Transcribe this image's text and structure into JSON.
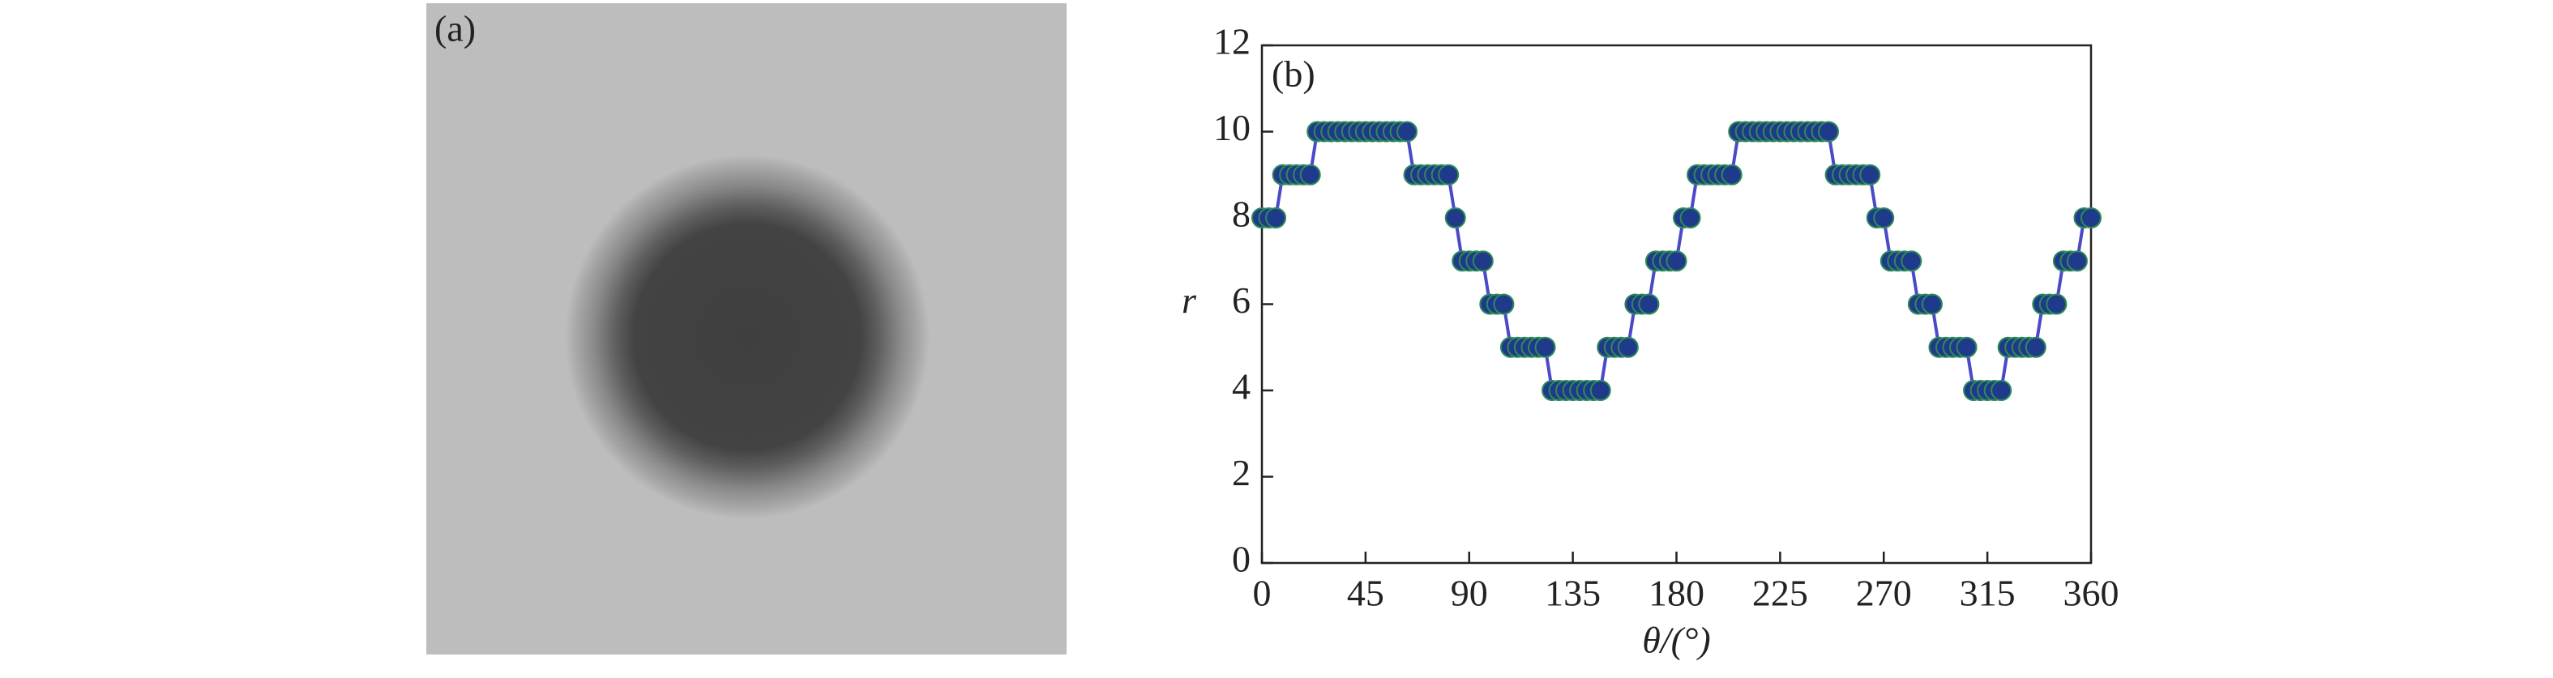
{
  "panel_a": {
    "label": "(a)"
  },
  "chart_data": {
    "type": "line",
    "label": "(b)",
    "xlabel": "θ/(°)",
    "ylabel": "r",
    "color": "#4a4ac8",
    "marker_color": "#1f3a8a",
    "marker_edge": "#2e8b57",
    "x": [
      0,
      3,
      6,
      9,
      12,
      15,
      18,
      21,
      24,
      27,
      30,
      33,
      36,
      39,
      42,
      45,
      48,
      51,
      54,
      57,
      60,
      63,
      66,
      69,
      72,
      75,
      78,
      81,
      84,
      87,
      90,
      93,
      96,
      99,
      102,
      105,
      108,
      111,
      114,
      117,
      120,
      123,
      126,
      129,
      132,
      135,
      138,
      141,
      144,
      147,
      150,
      153,
      156,
      159,
      162,
      165,
      168,
      171,
      174,
      177,
      180,
      183,
      186,
      189,
      192,
      195,
      198,
      201,
      204,
      207,
      210,
      213,
      216,
      219,
      222,
      225,
      228,
      231,
      234,
      237,
      240,
      243,
      246,
      249,
      252,
      255,
      258,
      261,
      264,
      267,
      270,
      273,
      276,
      279,
      282,
      285,
      288,
      291,
      294,
      297,
      300,
      303,
      306,
      309,
      312,
      315,
      318,
      321,
      324,
      327,
      330,
      333,
      336,
      339,
      342,
      345,
      348,
      351,
      354,
      357,
      360
    ],
    "values": [
      8,
      8,
      8,
      9,
      9,
      9,
      9,
      9,
      10,
      10,
      10,
      10,
      10,
      10,
      10,
      10,
      10,
      10,
      10,
      10,
      10,
      10,
      9,
      9,
      9,
      9,
      9,
      9,
      8,
      7,
      7,
      7,
      7,
      6,
      6,
      6,
      5,
      5,
      5,
      5,
      5,
      5,
      4,
      4,
      4,
      4,
      4,
      4,
      4,
      4,
      5,
      5,
      5,
      5,
      6,
      6,
      6,
      7,
      7,
      7,
      7,
      8,
      8,
      9,
      9,
      9,
      9,
      9,
      9,
      10,
      10,
      10,
      10,
      10,
      10,
      10,
      10,
      10,
      10,
      10,
      10,
      10,
      10,
      9,
      9,
      9,
      9,
      9,
      9,
      8,
      8,
      7,
      7,
      7,
      7,
      6,
      6,
      6,
      5,
      5,
      5,
      5,
      5,
      4,
      4,
      4,
      4,
      4,
      5,
      5,
      5,
      5,
      5,
      6,
      6,
      6,
      7,
      7,
      7,
      8,
      8
    ],
    "xlim": [
      0,
      360
    ],
    "xticks": [
      0,
      45,
      90,
      135,
      180,
      225,
      270,
      315,
      360
    ],
    "ylim": [
      0,
      12
    ],
    "yticks": [
      0,
      2,
      4,
      6,
      8,
      10,
      12
    ]
  }
}
